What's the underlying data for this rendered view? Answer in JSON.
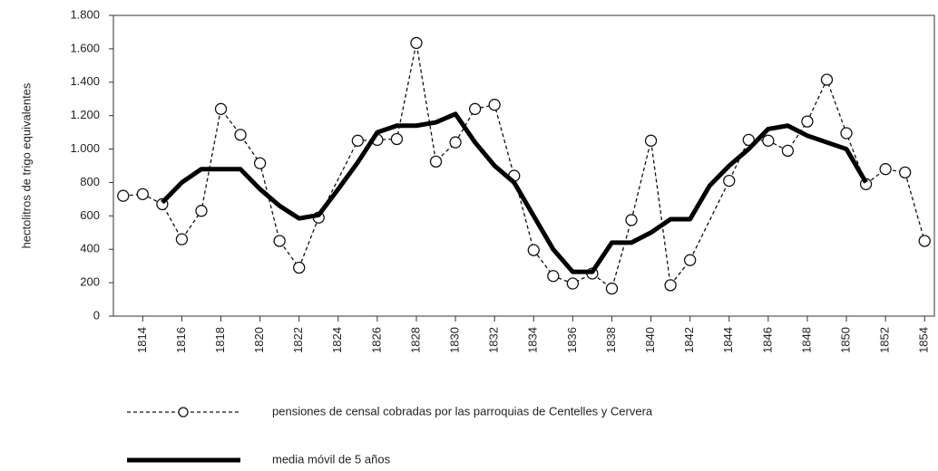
{
  "chart_data": {
    "type": "line",
    "y_label": "hectolitros de trigo equivalentes",
    "xlim": [
      1812.5,
      1854.5
    ],
    "xticks": [
      1814,
      1816,
      1818,
      1820,
      1822,
      1824,
      1826,
      1828,
      1830,
      1832,
      1834,
      1836,
      1838,
      1840,
      1842,
      1844,
      1846,
      1848,
      1850,
      1852,
      1854
    ],
    "ylim": [
      0,
      1800
    ],
    "yticks": [
      0,
      200,
      400,
      600,
      800,
      {
        "value": 1000,
        "label": "1.000"
      },
      {
        "value": 1200,
        "label": "1.200"
      },
      {
        "value": 1400,
        "label": "1.400"
      },
      {
        "value": 1600,
        "label": "1.600"
      },
      {
        "value": 1800,
        "label": "1.800"
      }
    ],
    "series": [
      {
        "name": "pensiones de censal cobradas por las parroquias de Centelles y Cervera",
        "color": "#111111",
        "style": "dashed-markers",
        "x": [
          1813,
          1814,
          1815,
          1816,
          1817,
          1818,
          1819,
          1820,
          1821,
          1822,
          1823,
          1825,
          1826,
          1827,
          1828,
          1829,
          1830,
          1831,
          1832,
          1833,
          1834,
          1835,
          1836,
          1837,
          1838,
          1839,
          1840,
          1841,
          1842,
          1844,
          1845,
          1846,
          1847,
          1848,
          1849,
          1850,
          1851,
          1852,
          1853,
          1854
        ],
        "values": [
          720,
          730,
          670,
          460,
          630,
          1240,
          1085,
          915,
          450,
          290,
          590,
          1050,
          1055,
          1060,
          1635,
          925,
          1040,
          1240,
          1265,
          840,
          395,
          240,
          195,
          255,
          165,
          575,
          1050,
          185,
          335,
          810,
          1055,
          1050,
          990,
          1165,
          1415,
          1095,
          790,
          880,
          860,
          450
        ]
      },
      {
        "name": "media móvil de 5 años",
        "color": "#000000",
        "style": "thick",
        "x": [
          1815,
          1816,
          1817,
          1818,
          1819,
          1820,
          1821,
          1822,
          1823,
          1824,
          1825,
          1826,
          1827,
          1828,
          1829,
          1830,
          1831,
          1832,
          1833,
          1834,
          1835,
          1836,
          1837,
          1838,
          1839,
          1840,
          1841,
          1842,
          1843,
          1844,
          1845,
          1846,
          1847,
          1848,
          1849,
          1850,
          1851
        ],
        "values": [
          680,
          800,
          880,
          880,
          880,
          760,
          660,
          585,
          605,
          760,
          920,
          1100,
          1140,
          1140,
          1160,
          1210,
          1040,
          900,
          800,
          600,
          400,
          265,
          265,
          440,
          440,
          500,
          580,
          580,
          780,
          900,
          1000,
          1120,
          1140,
          1080,
          1040,
          1000,
          800
        ]
      }
    ]
  }
}
